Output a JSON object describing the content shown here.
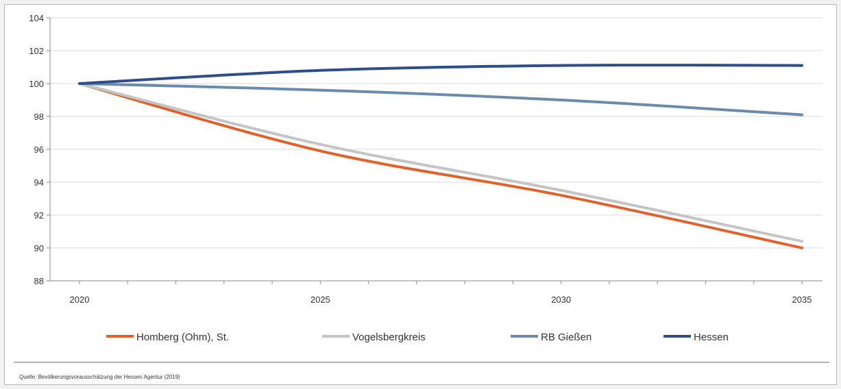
{
  "chart_data": {
    "type": "line",
    "title": "",
    "xlabel": "",
    "ylabel": "",
    "x": [
      2020,
      2025,
      2030,
      2035
    ],
    "xlim": [
      2020,
      2035
    ],
    "ylim": [
      88,
      104
    ],
    "yticks": [
      88,
      90,
      92,
      94,
      96,
      98,
      100,
      102,
      104
    ],
    "xtick_labels": [
      "2020",
      "2025",
      "2030",
      "2035"
    ],
    "ytick_labels": [
      "88",
      "90",
      "92",
      "94",
      "96",
      "98",
      "100",
      "102",
      "104"
    ],
    "grid": "horizontal",
    "legend_position": "bottom",
    "series": [
      {
        "name": "Homberg (Ohm), St.",
        "color": "#e0622a",
        "values": [
          100,
          95.9,
          93.2,
          90.0
        ]
      },
      {
        "name": "Vogelsbergkreis",
        "color": "#c4c4c4",
        "values": [
          100,
          96.3,
          93.5,
          90.4
        ]
      },
      {
        "name": "RB Gießen",
        "color": "#6a8aae",
        "values": [
          100,
          99.6,
          99.0,
          98.1
        ]
      },
      {
        "name": "Hessen",
        "color": "#2d4d8c",
        "values": [
          100,
          100.8,
          101.1,
          101.1
        ]
      }
    ]
  },
  "source": "Quelle: Bevölkerungsvorausschätzung der Hessen Agentur (2019)"
}
